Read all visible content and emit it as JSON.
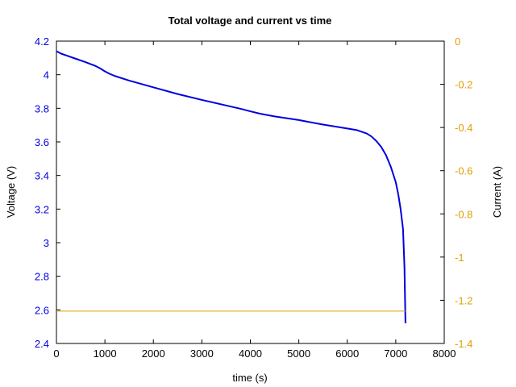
{
  "chart_data": {
    "type": "line",
    "title": "Total voltage and current vs time",
    "xlabel": "time (s)",
    "ylabel": "Voltage (V)",
    "y2label": "Current (A)",
    "xlim": [
      0,
      8000
    ],
    "ylim": [
      2.4,
      4.2
    ],
    "y2lim": [
      -1.4,
      0
    ],
    "x_ticks": [
      "0",
      "1000",
      "2000",
      "3000",
      "4000",
      "5000",
      "6000",
      "7000",
      "8000"
    ],
    "y_ticks": [
      "2.4",
      "2.6",
      "2.8",
      "3",
      "3.2",
      "3.4",
      "3.6",
      "3.8",
      "4",
      "4.2"
    ],
    "y2_ticks": [
      "-1.4",
      "-1.2",
      "-1",
      "-0.8",
      "-0.6",
      "-0.4",
      "-0.2",
      "0"
    ],
    "grid": false,
    "legend": "none",
    "colors": {
      "voltage": "#0000e0",
      "current": "#e0a000",
      "axis_left": "#0000e0",
      "axis_right": "#e0a000"
    },
    "series": [
      {
        "axis": "left",
        "x": [
          0,
          100,
          200,
          400,
          600,
          800,
          900,
          1000,
          1100,
          1200,
          1500,
          2000,
          2500,
          3000,
          3500,
          3800,
          4000,
          4200,
          4500,
          5000,
          5500,
          6000,
          6200,
          6400,
          6500,
          6600,
          6700,
          6800,
          6900,
          7000,
          7050,
          7100,
          7150,
          7180,
          7200
        ],
        "values": [
          4.14,
          4.125,
          4.115,
          4.095,
          4.075,
          4.053,
          4.038,
          4.02,
          4.005,
          3.993,
          3.965,
          3.925,
          3.885,
          3.85,
          3.817,
          3.797,
          3.782,
          3.768,
          3.752,
          3.73,
          3.703,
          3.68,
          3.67,
          3.65,
          3.632,
          3.605,
          3.57,
          3.52,
          3.45,
          3.36,
          3.29,
          3.2,
          3.08,
          2.85,
          2.52
        ]
      },
      {
        "axis": "right",
        "x": [
          0,
          7200
        ],
        "values": [
          -1.25,
          -1.25
        ]
      }
    ]
  }
}
